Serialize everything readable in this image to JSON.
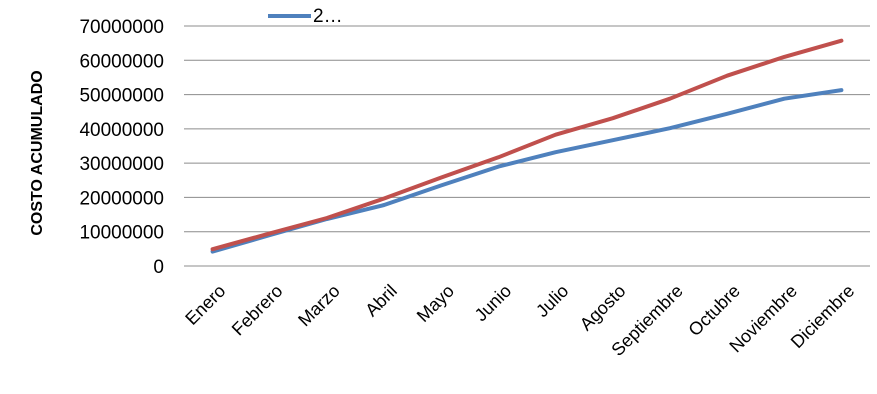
{
  "chart_data": {
    "type": "line",
    "ylabel": "COSTO ACUMULADO",
    "xlabel": "",
    "categories": [
      "Enero",
      "Febrero",
      "Marzo",
      "Abril",
      "Mayo",
      "Junio",
      "Julio",
      "Agosto",
      "Septiembre",
      "Octubre",
      "Noviembre",
      "Diciembre"
    ],
    "ylim": [
      0,
      70000000
    ],
    "yticks": [
      0,
      10000000,
      20000000,
      30000000,
      40000000,
      50000000,
      60000000,
      70000000
    ],
    "ytick_labels": [
      "0",
      "10000000",
      "20000000",
      "30000000",
      "40000000",
      "50000000",
      "60000000",
      "70000000"
    ],
    "grid": true,
    "legend_position": "top",
    "series": [
      {
        "name": "2…",
        "color": "#4F81BD",
        "values": [
          4200000,
          9000000,
          13700000,
          17800000,
          23500000,
          29000000,
          33200000,
          36700000,
          40200000,
          44400000,
          48800000,
          51300000
        ]
      },
      {
        "color": "#C0504D",
        "values": [
          4900000,
          9500000,
          14000000,
          19700000,
          25800000,
          31700000,
          38300000,
          43100000,
          48800000,
          55500000,
          61000000,
          65700000
        ]
      }
    ]
  }
}
